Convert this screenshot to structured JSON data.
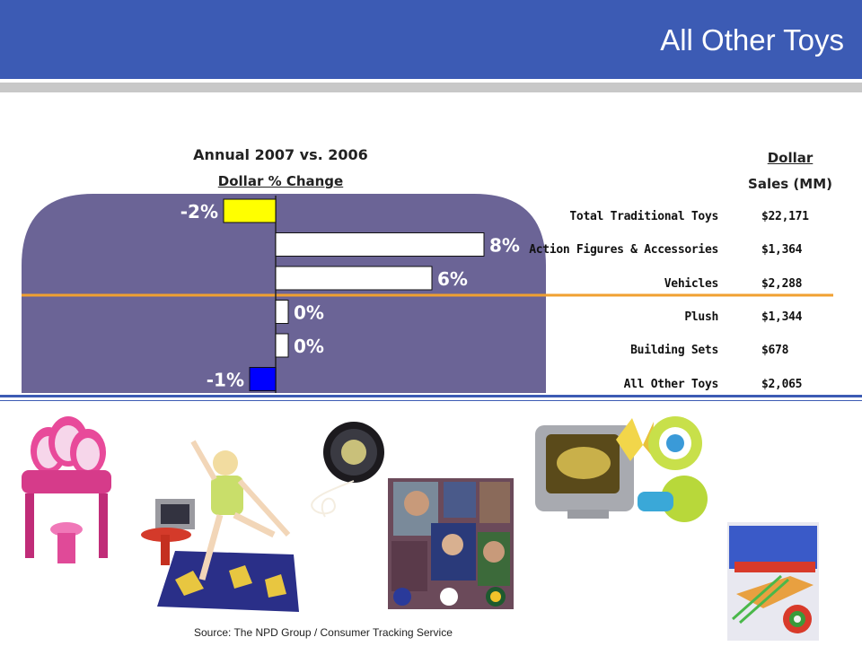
{
  "slide": {
    "title": "All Other Toys",
    "source": "Source:  The NPD Group / Consumer Tracking Service"
  },
  "colors": {
    "header": "#3c5bb4",
    "panel": "#6b6496",
    "divider": "#f0a030",
    "negative_first": "#ffff00",
    "negative_last": "#0000ff",
    "positive": "#ffffff"
  },
  "chart_data": {
    "type": "bar",
    "orientation": "horizontal",
    "title": "Annual 2007 vs. 2006",
    "subtitle": "Dollar % Change",
    "categories": [
      "Total Traditional Toys",
      "Action Figures & Accessories",
      "Vehicles",
      "Plush",
      "Building Sets",
      "All Other Toys"
    ],
    "values": [
      -2,
      8,
      6,
      0,
      0,
      -1
    ],
    "data_labels": [
      "-2%",
      "8%",
      "6%",
      "0%",
      "0%",
      "-1%"
    ],
    "unit": "%",
    "xlim": [
      -3,
      9
    ],
    "grid": false,
    "legend": "none"
  },
  "sales_table": {
    "header_line1": "Dollar",
    "header_line2": "Sales (MM)",
    "rows": [
      {
        "label": "Total Traditional Toys",
        "value": "$22,171"
      },
      {
        "label": "Action Figures & Accessories",
        "value": "$1,364"
      },
      {
        "label": "Vehicles",
        "value": "$2,288"
      },
      {
        "label": "Plush",
        "value": "$1,344"
      },
      {
        "label": "Building Sets",
        "value": "$678"
      },
      {
        "label": "All Other Toys",
        "value": "$2,065"
      }
    ]
  },
  "images": [
    {
      "name": "vanity-toy-image"
    },
    {
      "name": "dance-mat-toy-image"
    },
    {
      "name": "yoyo-toy-image"
    },
    {
      "name": "baseball-cards-image"
    },
    {
      "name": "tv-camera-toy-image"
    },
    {
      "name": "arrow-rifle-toy-image"
    }
  ]
}
